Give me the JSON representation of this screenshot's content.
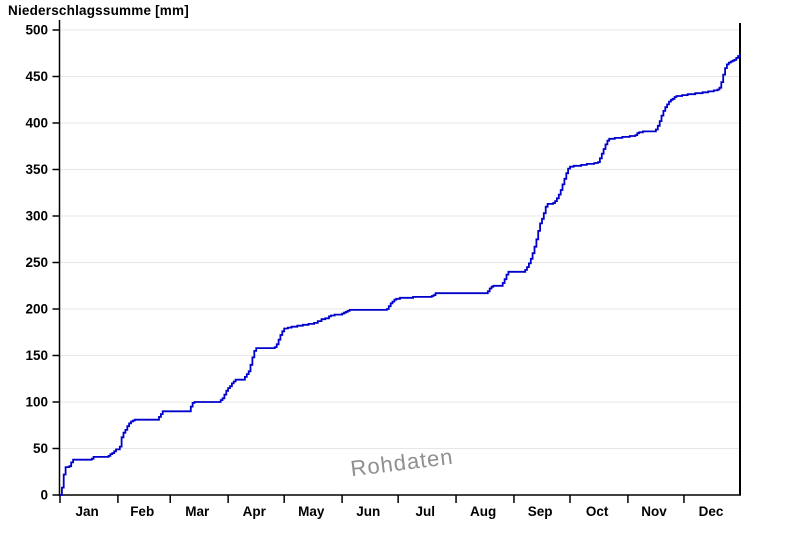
{
  "chart": {
    "title": "Niederschlagssumme [mm]",
    "watermark": "Rohdaten"
  },
  "chart_data": {
    "type": "line",
    "title": "Niederschlagssumme [mm]",
    "xlabel": "",
    "ylabel": "Niederschlagssumme [mm]",
    "x_unit": "day_of_year",
    "xlim": [
      1,
      365
    ],
    "ylim": [
      0,
      500
    ],
    "y_ticks": [
      0,
      50,
      100,
      150,
      200,
      250,
      300,
      350,
      400,
      450,
      500
    ],
    "months": [
      {
        "label": "Jan",
        "days": 31
      },
      {
        "label": "Feb",
        "days": 28
      },
      {
        "label": "Mar",
        "days": 31
      },
      {
        "label": "Apr",
        "days": 30
      },
      {
        "label": "May",
        "days": 31
      },
      {
        "label": "Jun",
        "days": 30
      },
      {
        "label": "Jul",
        "days": 31
      },
      {
        "label": "Aug",
        "days": 31
      },
      {
        "label": "Sep",
        "days": 30
      },
      {
        "label": "Oct",
        "days": 31
      },
      {
        "label": "Nov",
        "days": 30
      },
      {
        "label": "Dec",
        "days": 31
      }
    ],
    "grid": "horizontal",
    "legend": "none",
    "line_color": "#0000cc",
    "grid_color": "#e7e7e7",
    "axis_color": "#000000",
    "watermark_text": "Rohdaten",
    "series": [
      {
        "name": "Niederschlagssumme",
        "step": "after",
        "points": [
          [
            1,
            0
          ],
          [
            2,
            8
          ],
          [
            3,
            22
          ],
          [
            4,
            30
          ],
          [
            6,
            31
          ],
          [
            7,
            35
          ],
          [
            8,
            38
          ],
          [
            18,
            39
          ],
          [
            19,
            41
          ],
          [
            27,
            42
          ],
          [
            28,
            44
          ],
          [
            29,
            45
          ],
          [
            30,
            47
          ],
          [
            31,
            49
          ],
          [
            33,
            52
          ],
          [
            34,
            62
          ],
          [
            35,
            67
          ],
          [
            36,
            70
          ],
          [
            37,
            74
          ],
          [
            38,
            77
          ],
          [
            39,
            79
          ],
          [
            40,
            80
          ],
          [
            41,
            81
          ],
          [
            53,
            81
          ],
          [
            54,
            84
          ],
          [
            55,
            87
          ],
          [
            56,
            90
          ],
          [
            70,
            90
          ],
          [
            71,
            95
          ],
          [
            72,
            99
          ],
          [
            73,
            100
          ],
          [
            86,
            100
          ],
          [
            87,
            102
          ],
          [
            88,
            104
          ],
          [
            89,
            108
          ],
          [
            90,
            112
          ],
          [
            91,
            115
          ],
          [
            92,
            117
          ],
          [
            93,
            120
          ],
          [
            94,
            122
          ],
          [
            95,
            124
          ],
          [
            99,
            124
          ],
          [
            100,
            127
          ],
          [
            101,
            130
          ],
          [
            102,
            133
          ],
          [
            103,
            140
          ],
          [
            104,
            148
          ],
          [
            105,
            155
          ],
          [
            106,
            158
          ],
          [
            116,
            159
          ],
          [
            117,
            162
          ],
          [
            118,
            167
          ],
          [
            119,
            172
          ],
          [
            120,
            176
          ],
          [
            121,
            179
          ],
          [
            123,
            180
          ],
          [
            125,
            181
          ],
          [
            128,
            182
          ],
          [
            131,
            183
          ],
          [
            134,
            184
          ],
          [
            137,
            185
          ],
          [
            139,
            187
          ],
          [
            141,
            189
          ],
          [
            143,
            190
          ],
          [
            145,
            192
          ],
          [
            146,
            193
          ],
          [
            148,
            194
          ],
          [
            152,
            195
          ],
          [
            153,
            196
          ],
          [
            154,
            197
          ],
          [
            155,
            198
          ],
          [
            156,
            199
          ],
          [
            175,
            199
          ],
          [
            176,
            200
          ],
          [
            177,
            203
          ],
          [
            178,
            206
          ],
          [
            179,
            208
          ],
          [
            180,
            210
          ],
          [
            181,
            211
          ],
          [
            183,
            212
          ],
          [
            190,
            213
          ],
          [
            200,
            214
          ],
          [
            201,
            215
          ],
          [
            202,
            217
          ],
          [
            229,
            217
          ],
          [
            230,
            219
          ],
          [
            231,
            222
          ],
          [
            232,
            224
          ],
          [
            233,
            225
          ],
          [
            237,
            225
          ],
          [
            238,
            228
          ],
          [
            239,
            232
          ],
          [
            240,
            237
          ],
          [
            241,
            240
          ],
          [
            249,
            240
          ],
          [
            250,
            242
          ],
          [
            251,
            245
          ],
          [
            252,
            249
          ],
          [
            253,
            254
          ],
          [
            254,
            260
          ],
          [
            255,
            267
          ],
          [
            256,
            275
          ],
          [
            257,
            284
          ],
          [
            258,
            292
          ],
          [
            259,
            297
          ],
          [
            260,
            303
          ],
          [
            261,
            310
          ],
          [
            262,
            313
          ],
          [
            265,
            314
          ],
          [
            266,
            316
          ],
          [
            267,
            319
          ],
          [
            268,
            323
          ],
          [
            269,
            328
          ],
          [
            270,
            334
          ],
          [
            271,
            340
          ],
          [
            272,
            346
          ],
          [
            273,
            351
          ],
          [
            274,
            353
          ],
          [
            276,
            354
          ],
          [
            280,
            355
          ],
          [
            283,
            356
          ],
          [
            287,
            357
          ],
          [
            289,
            358
          ],
          [
            290,
            362
          ],
          [
            291,
            367
          ],
          [
            292,
            372
          ],
          [
            293,
            377
          ],
          [
            294,
            381
          ],
          [
            295,
            383
          ],
          [
            298,
            384
          ],
          [
            302,
            385
          ],
          [
            306,
            386
          ],
          [
            309,
            387
          ],
          [
            310,
            389
          ],
          [
            311,
            390
          ],
          [
            313,
            391
          ],
          [
            319,
            391
          ],
          [
            320,
            393
          ],
          [
            321,
            397
          ],
          [
            322,
            402
          ],
          [
            323,
            408
          ],
          [
            324,
            413
          ],
          [
            325,
            417
          ],
          [
            326,
            420
          ],
          [
            327,
            423
          ],
          [
            328,
            425
          ],
          [
            329,
            426
          ],
          [
            330,
            428
          ],
          [
            331,
            429
          ],
          [
            334,
            430
          ],
          [
            337,
            431
          ],
          [
            341,
            432
          ],
          [
            345,
            433
          ],
          [
            348,
            434
          ],
          [
            351,
            435
          ],
          [
            353,
            436
          ],
          [
            354,
            438
          ],
          [
            355,
            444
          ],
          [
            356,
            452
          ],
          [
            357,
            459
          ],
          [
            358,
            463
          ],
          [
            359,
            465
          ],
          [
            360,
            466
          ],
          [
            361,
            467
          ],
          [
            362,
            468
          ],
          [
            363,
            470
          ],
          [
            364,
            472
          ],
          [
            365,
            474
          ]
        ]
      }
    ]
  }
}
